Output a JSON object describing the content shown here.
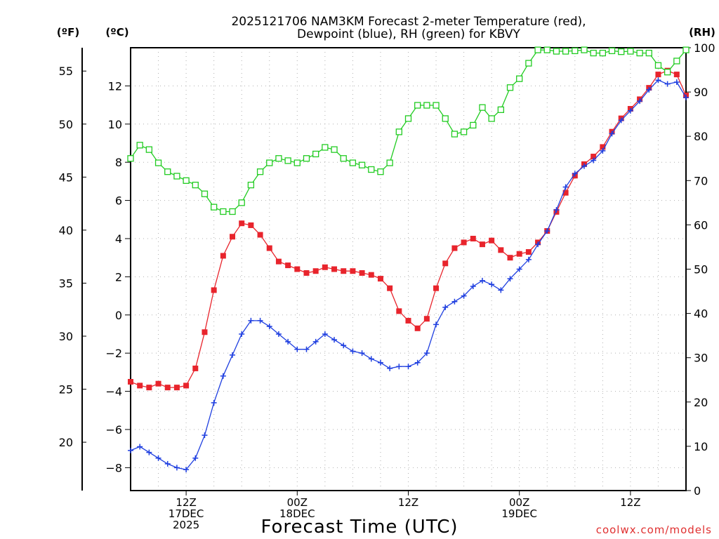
{
  "chart_data": {
    "type": "line",
    "title_line1": "2025121706 NAM3KM Forecast 2-meter Temperature (red),",
    "title_line2": "Dewpoint (blue), RH (green) for KBVY",
    "xlabel": "Forecast Time (UTC)",
    "credit": "coolwx.com/models",
    "units": {
      "fahrenheit": "(ºF)",
      "celsius": "(ºC)",
      "rh": "(RH)"
    },
    "celsius_axis": {
      "range": [
        -9.2,
        14.0
      ],
      "ticks": [
        "-8",
        "-6",
        "-4",
        "-2",
        "0",
        "2",
        "4",
        "6",
        "8",
        "10",
        "12"
      ]
    },
    "fahrenheit_axis": {
      "ticks": [
        "20",
        "25",
        "30",
        "35",
        "40",
        "45",
        "50",
        "55"
      ]
    },
    "rh_axis": {
      "range": [
        0,
        100
      ],
      "ticks": [
        "0",
        "10",
        "20",
        "30",
        "40",
        "50",
        "60",
        "70",
        "80",
        "90",
        "100"
      ]
    },
    "x_axis": {
      "range_hours": [
        0,
        60
      ],
      "ticks": [
        {
          "hour": 6,
          "lines": [
            "12Z",
            "17DEC",
            "2025"
          ]
        },
        {
          "hour": 18,
          "lines": [
            "00Z",
            "18DEC"
          ]
        },
        {
          "hour": 30,
          "lines": [
            "12Z"
          ]
        },
        {
          "hour": 42,
          "lines": [
            "00Z",
            "19DEC"
          ]
        },
        {
          "hour": 54,
          "lines": [
            "12Z"
          ]
        }
      ]
    },
    "colors": {
      "temperature": "#e8242c",
      "dewpoint": "#1f3fe0",
      "rh": "#22cc22",
      "credit": "#e03030"
    },
    "series": [
      {
        "name": "Temperature (°C)",
        "color": "#e8242c",
        "marker": "filled-square",
        "x": [
          0,
          1,
          2,
          3,
          4,
          5,
          6,
          7,
          8,
          9,
          10,
          11,
          12,
          13,
          14,
          15,
          16,
          17,
          18,
          19,
          20,
          21,
          22,
          23,
          24,
          25,
          26,
          27,
          28,
          29,
          30,
          31,
          32,
          33,
          34,
          35,
          36,
          37,
          38,
          39,
          40,
          41,
          42,
          43,
          44,
          45,
          46,
          47,
          48,
          49,
          50,
          51,
          52,
          53,
          54,
          55,
          56,
          57,
          58,
          59,
          60
        ],
        "values": [
          -3.5,
          -3.7,
          -3.8,
          -3.6,
          -3.8,
          -3.8,
          -3.7,
          -2.8,
          -0.9,
          1.3,
          3.1,
          4.1,
          4.8,
          4.7,
          4.2,
          3.5,
          2.8,
          2.6,
          2.4,
          2.2,
          2.3,
          2.5,
          2.4,
          2.3,
          2.3,
          2.2,
          2.1,
          1.9,
          1.4,
          0.2,
          -0.3,
          -0.7,
          -0.2,
          1.4,
          2.7,
          3.5,
          3.8,
          4.0,
          3.7,
          3.9,
          3.4,
          3.0,
          3.2,
          3.3,
          3.8,
          4.4,
          5.4,
          6.4,
          7.3,
          7.9,
          8.3,
          8.8,
          9.6,
          10.3,
          10.8,
          11.3,
          11.9,
          12.6,
          12.8,
          12.6,
          11.5
        ]
      },
      {
        "name": "Dewpoint (°C)",
        "color": "#1f3fe0",
        "marker": "plus",
        "x": [
          0,
          1,
          2,
          3,
          4,
          5,
          6,
          7,
          8,
          9,
          10,
          11,
          12,
          13,
          14,
          15,
          16,
          17,
          18,
          19,
          20,
          21,
          22,
          23,
          24,
          25,
          26,
          27,
          28,
          29,
          30,
          31,
          32,
          33,
          34,
          35,
          36,
          37,
          38,
          39,
          40,
          41,
          42,
          43,
          44,
          45,
          46,
          47,
          48,
          49,
          50,
          51,
          52,
          53,
          54,
          55,
          56,
          57,
          58,
          59,
          60
        ],
        "values": [
          -7.1,
          -6.9,
          -7.2,
          -7.5,
          -7.8,
          -8.0,
          -8.1,
          -7.5,
          -6.3,
          -4.6,
          -3.2,
          -2.1,
          -1.0,
          -0.3,
          -0.3,
          -0.6,
          -1.0,
          -1.4,
          -1.8,
          -1.8,
          -1.4,
          -1.0,
          -1.3,
          -1.6,
          -1.9,
          -2.0,
          -2.3,
          -2.5,
          -2.8,
          -2.7,
          -2.7,
          -2.5,
          -2.0,
          -0.5,
          0.4,
          0.7,
          1.0,
          1.5,
          1.8,
          1.6,
          1.3,
          1.9,
          2.4,
          2.9,
          3.7,
          4.4,
          5.5,
          6.7,
          7.4,
          7.8,
          8.1,
          8.6,
          9.5,
          10.2,
          10.7,
          11.2,
          11.8,
          12.3,
          12.1,
          12.2,
          11.4
        ]
      },
      {
        "name": "RH (%)",
        "color": "#22cc22",
        "marker": "open-square",
        "x": [
          0,
          1,
          2,
          3,
          4,
          5,
          6,
          7,
          8,
          9,
          10,
          11,
          12,
          13,
          14,
          15,
          16,
          17,
          18,
          19,
          20,
          21,
          22,
          23,
          24,
          25,
          26,
          27,
          28,
          29,
          30,
          31,
          32,
          33,
          34,
          35,
          36,
          37,
          38,
          39,
          40,
          41,
          42,
          43,
          44,
          45,
          46,
          47,
          48,
          49,
          50,
          51,
          52,
          53,
          54,
          55,
          56,
          57,
          58,
          59,
          60
        ],
        "values": [
          75,
          78,
          77,
          74,
          72,
          71,
          70,
          69,
          67,
          64,
          63,
          63,
          65,
          69,
          72,
          74,
          75,
          74.5,
          74,
          75,
          76,
          77.5,
          77,
          75,
          74,
          73.5,
          72.5,
          72,
          74,
          81,
          84,
          87,
          87,
          87,
          84,
          80.5,
          81,
          82.5,
          86.5,
          84,
          86,
          91,
          93,
          96.5,
          99.5,
          99.5,
          99.2,
          99.2,
          99.3,
          99.5,
          98.8,
          98.8,
          99.3,
          99.1,
          99.2,
          98.8,
          98.8,
          96,
          94.5,
          97,
          99.5
        ]
      }
    ]
  }
}
